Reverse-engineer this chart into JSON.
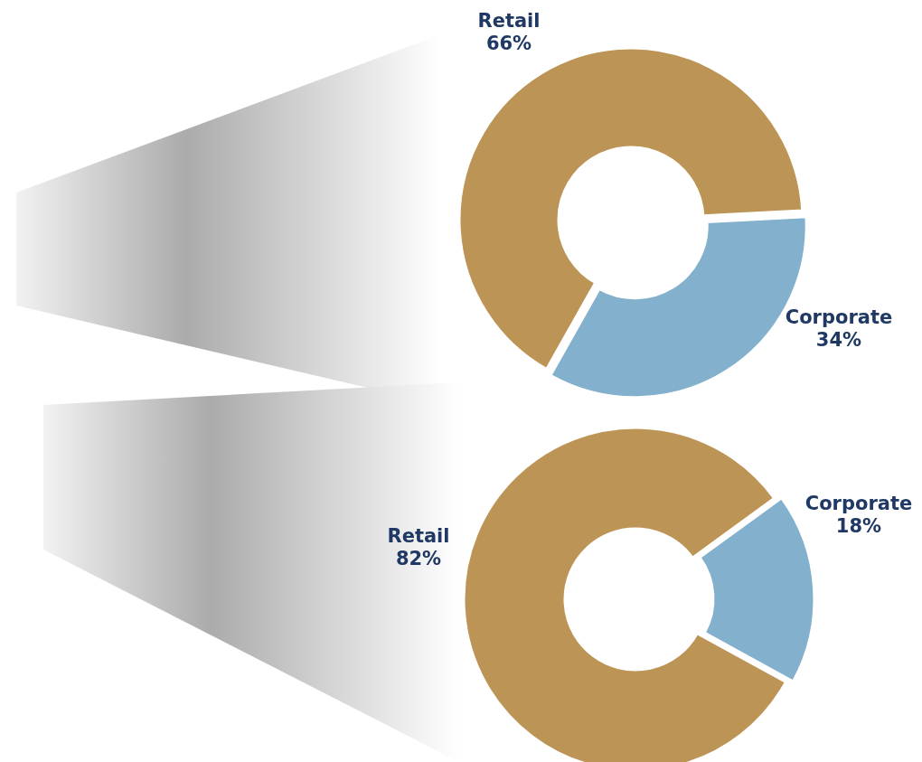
{
  "chart_data": [
    {
      "type": "donut",
      "categories": [
        "Retail",
        "Corporate"
      ],
      "values": [
        66,
        34
      ],
      "colors": [
        "#bc9455",
        "#82b0cd"
      ],
      "value_labels": [
        "66%",
        "34%"
      ]
    },
    {
      "type": "donut",
      "categories": [
        "Retail",
        "Corporate"
      ],
      "values": [
        82,
        18
      ],
      "colors": [
        "#bc9455",
        "#82b0cd"
      ],
      "value_labels": [
        "82%",
        "18%"
      ]
    }
  ]
}
